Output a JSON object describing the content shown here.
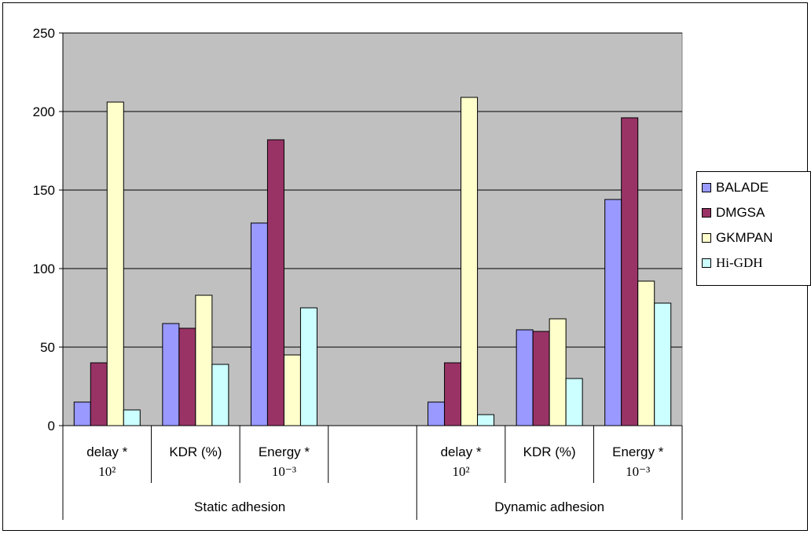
{
  "chart_data": {
    "type": "bar",
    "ylim": [
      0,
      250
    ],
    "yticks": [
      "0",
      "50",
      "100",
      "150",
      "200",
      "250"
    ],
    "grid": true,
    "plot_background": "#C0C0C0",
    "legend_position": "right",
    "categories": [
      {
        "line1": "delay *",
        "line2": "10²"
      },
      {
        "line1": "KDR (%)",
        "line2": ""
      },
      {
        "line1": "Energy *",
        "line2": "10⁻³"
      },
      {
        "line1": "",
        "line2": ""
      },
      {
        "line1": "delay *",
        "line2": "10²"
      },
      {
        "line1": "KDR (%)",
        "line2": ""
      },
      {
        "line1": "Energy *",
        "line2": "10⁻³"
      }
    ],
    "groups": [
      "Static adhesion",
      "Dynamic adhesion"
    ],
    "series": [
      {
        "name": "BALADE",
        "color": "#9999FF",
        "values": [
          15,
          65,
          129,
          null,
          15,
          61,
          144
        ]
      },
      {
        "name": "DMGSA",
        "color": "#993366",
        "values": [
          40,
          62,
          182,
          null,
          40,
          60,
          196
        ]
      },
      {
        "name": "GKMPAN",
        "color": "#FFFFCC",
        "values": [
          206,
          83,
          45,
          null,
          209,
          68,
          92
        ]
      },
      {
        "name": "Hi-GDH",
        "color": "#CCFFFF",
        "values": [
          10,
          39,
          75,
          null,
          7,
          30,
          78
        ]
      }
    ]
  }
}
